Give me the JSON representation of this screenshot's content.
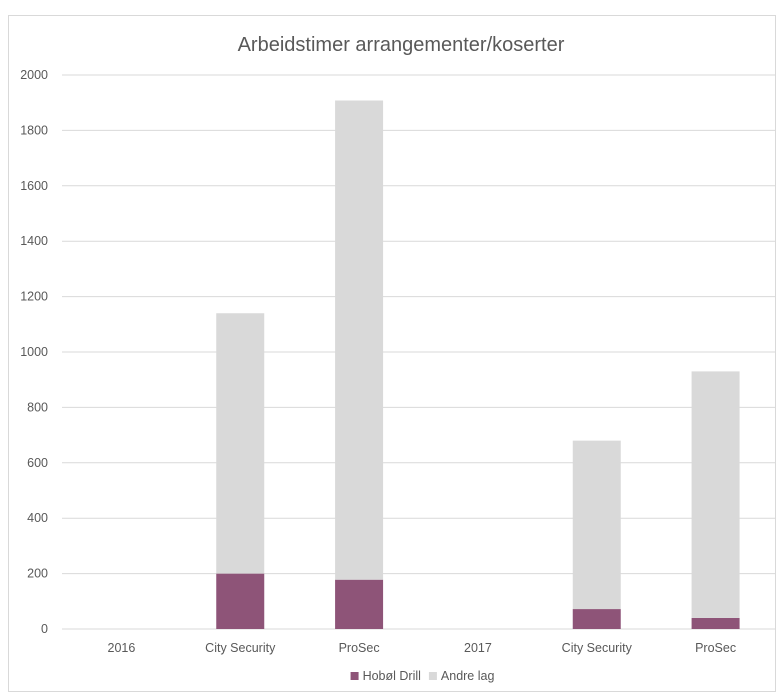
{
  "chart_data": {
    "type": "bar",
    "stacked": true,
    "title": "Arbeidstimer arrangementer/koserter",
    "xlabel": "",
    "ylabel": "",
    "categories": [
      "2016",
      "City Security",
      "ProSec",
      "2017",
      "City Security",
      "ProSec"
    ],
    "ylim": [
      0,
      2000
    ],
    "yticks": [
      0,
      200,
      400,
      600,
      800,
      1000,
      1200,
      1400,
      1600,
      1800,
      2000
    ],
    "grid": true,
    "legend_position": "bottom",
    "series": [
      {
        "name": "Hobøl Drill",
        "color": "#8e5478",
        "values": [
          0,
          200,
          178,
          0,
          72,
          40
        ]
      },
      {
        "name": "Andre lag",
        "color": "#d9d9d9",
        "values": [
          0,
          940,
          1730,
          0,
          608,
          890
        ]
      }
    ]
  }
}
